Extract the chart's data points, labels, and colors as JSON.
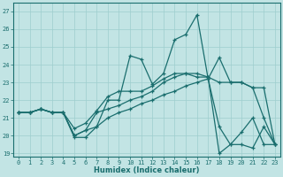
{
  "xlabel": "Humidex (Indice chaleur)",
  "xlim": [
    -0.5,
    23.5
  ],
  "ylim": [
    18.8,
    27.5
  ],
  "yticks": [
    19,
    20,
    21,
    22,
    23,
    24,
    25,
    26,
    27
  ],
  "xticks": [
    0,
    1,
    2,
    3,
    4,
    5,
    6,
    7,
    8,
    9,
    10,
    11,
    12,
    13,
    14,
    15,
    16,
    17,
    18,
    19,
    20,
    21,
    22,
    23
  ],
  "bg_color": "#c2e4e4",
  "grid_color": "#9ecece",
  "line_color": "#1a6e6e",
  "line1_y": [
    21.3,
    21.3,
    21.5,
    21.3,
    21.3,
    19.9,
    19.9,
    20.5,
    22.0,
    22.0,
    24.5,
    24.3,
    22.9,
    23.5,
    25.4,
    25.7,
    26.8,
    23.2,
    24.4,
    23.0,
    23.0,
    22.7,
    21.0,
    19.5
  ],
  "line2_y": [
    21.3,
    21.3,
    21.5,
    21.3,
    21.3,
    20.4,
    20.7,
    21.4,
    22.2,
    22.5,
    22.5,
    22.5,
    22.8,
    23.2,
    23.5,
    23.5,
    23.3,
    23.3,
    23.0,
    23.0,
    23.0,
    22.7,
    22.7,
    19.5
  ],
  "line3_y": [
    21.3,
    21.3,
    21.5,
    21.3,
    21.3,
    20.0,
    20.3,
    21.3,
    21.5,
    21.7,
    22.0,
    22.2,
    22.5,
    23.0,
    23.3,
    23.5,
    23.5,
    23.3,
    19.0,
    19.5,
    20.2,
    21.0,
    19.5,
    19.5
  ],
  "line4_y": [
    21.3,
    21.3,
    21.5,
    21.3,
    21.3,
    20.0,
    20.3,
    20.5,
    21.0,
    21.3,
    21.5,
    21.8,
    22.0,
    22.3,
    22.5,
    22.8,
    23.0,
    23.2,
    20.5,
    19.5,
    19.5,
    19.3,
    20.5,
    19.5
  ]
}
